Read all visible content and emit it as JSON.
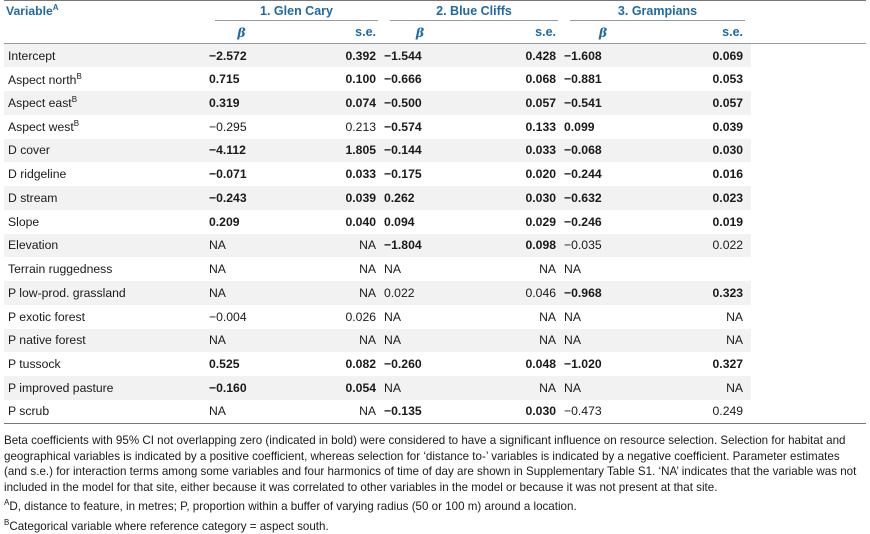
{
  "header": {
    "variable_label": "Variable",
    "variable_sup": "A",
    "groups": [
      "1. Glen Cary",
      "2. Blue Cliffs",
      "3. Grampians"
    ],
    "beta_label": "β",
    "se_label": "s.e."
  },
  "rows": [
    {
      "name": "Intercept",
      "sup": "",
      "cells": [
        {
          "v": "−2.572",
          "b": true
        },
        {
          "v": "0.392",
          "b": true
        },
        {
          "v": "−1.544",
          "b": true
        },
        {
          "v": "0.428",
          "b": true
        },
        {
          "v": "−1.608",
          "b": true
        },
        {
          "v": "0.069",
          "b": true
        }
      ]
    },
    {
      "name": "Aspect north",
      "sup": "B",
      "cells": [
        {
          "v": "0.715",
          "b": true
        },
        {
          "v": "0.100",
          "b": true
        },
        {
          "v": "−0.666",
          "b": true
        },
        {
          "v": "0.068",
          "b": true
        },
        {
          "v": "−0.881",
          "b": true
        },
        {
          "v": "0.053",
          "b": true
        }
      ]
    },
    {
      "name": "Aspect east",
      "sup": "B",
      "cells": [
        {
          "v": "0.319",
          "b": true
        },
        {
          "v": "0.074",
          "b": true
        },
        {
          "v": "−0.500",
          "b": true
        },
        {
          "v": "0.057",
          "b": true
        },
        {
          "v": "−0.541",
          "b": true
        },
        {
          "v": "0.057",
          "b": true
        }
      ]
    },
    {
      "name": "Aspect west",
      "sup": "B",
      "cells": [
        {
          "v": "−0.295",
          "b": false
        },
        {
          "v": "0.213",
          "b": false
        },
        {
          "v": "−0.574",
          "b": true
        },
        {
          "v": "0.133",
          "b": true
        },
        {
          "v": "0.099",
          "b": true
        },
        {
          "v": "0.039",
          "b": true
        }
      ]
    },
    {
      "name": "D cover",
      "sup": "",
      "cells": [
        {
          "v": "−4.112",
          "b": true
        },
        {
          "v": "1.805",
          "b": true
        },
        {
          "v": "−0.144",
          "b": true
        },
        {
          "v": "0.033",
          "b": true
        },
        {
          "v": "−0.068",
          "b": true
        },
        {
          "v": "0.030",
          "b": true
        }
      ]
    },
    {
      "name": "D ridgeline",
      "sup": "",
      "cells": [
        {
          "v": "−0.071",
          "b": true
        },
        {
          "v": "0.033",
          "b": true
        },
        {
          "v": "−0.175",
          "b": true
        },
        {
          "v": "0.020",
          "b": true
        },
        {
          "v": "−0.244",
          "b": true
        },
        {
          "v": "0.016",
          "b": true
        }
      ]
    },
    {
      "name": "D stream",
      "sup": "",
      "cells": [
        {
          "v": "−0.243",
          "b": true
        },
        {
          "v": "0.039",
          "b": true
        },
        {
          "v": "0.262",
          "b": true
        },
        {
          "v": "0.030",
          "b": true
        },
        {
          "v": "−0.632",
          "b": true
        },
        {
          "v": "0.023",
          "b": true
        }
      ]
    },
    {
      "name": "Slope",
      "sup": "",
      "cells": [
        {
          "v": "0.209",
          "b": true
        },
        {
          "v": "0.040",
          "b": true
        },
        {
          "v": "0.094",
          "b": true
        },
        {
          "v": "0.029",
          "b": true
        },
        {
          "v": "−0.246",
          "b": true
        },
        {
          "v": "0.019",
          "b": true
        }
      ]
    },
    {
      "name": "Elevation",
      "sup": "",
      "cells": [
        {
          "v": "NA",
          "b": false
        },
        {
          "v": "NA",
          "b": false
        },
        {
          "v": "−1.804",
          "b": true
        },
        {
          "v": "0.098",
          "b": true
        },
        {
          "v": "−0.035",
          "b": false
        },
        {
          "v": "0.022",
          "b": false
        }
      ]
    },
    {
      "name": "Terrain ruggedness",
      "sup": "",
      "cells": [
        {
          "v": "NA",
          "b": false
        },
        {
          "v": "NA",
          "b": false
        },
        {
          "v": "NA",
          "b": false
        },
        {
          "v": "NA",
          "b": false
        },
        {
          "v": "NA",
          "b": false
        },
        {
          "v": "",
          "b": false
        }
      ]
    },
    {
      "name": "P low-prod. grassland",
      "sup": "",
      "cells": [
        {
          "v": "NA",
          "b": false
        },
        {
          "v": "NA",
          "b": false
        },
        {
          "v": "0.022",
          "b": false
        },
        {
          "v": "0.046",
          "b": false
        },
        {
          "v": "−0.968",
          "b": true
        },
        {
          "v": "0.323",
          "b": true
        }
      ]
    },
    {
      "name": "P exotic forest",
      "sup": "",
      "cells": [
        {
          "v": "−0.004",
          "b": false
        },
        {
          "v": "0.026",
          "b": false
        },
        {
          "v": "NA",
          "b": false
        },
        {
          "v": "NA",
          "b": false
        },
        {
          "v": "NA",
          "b": false
        },
        {
          "v": "NA",
          "b": false
        }
      ]
    },
    {
      "name": "P native forest",
      "sup": "",
      "cells": [
        {
          "v": "NA",
          "b": false
        },
        {
          "v": "NA",
          "b": false
        },
        {
          "v": "NA",
          "b": false
        },
        {
          "v": "NA",
          "b": false
        },
        {
          "v": "NA",
          "b": false
        },
        {
          "v": "NA",
          "b": false
        }
      ]
    },
    {
      "name": "P tussock",
      "sup": "",
      "cells": [
        {
          "v": "0.525",
          "b": true
        },
        {
          "v": "0.082",
          "b": true
        },
        {
          "v": "−0.260",
          "b": true
        },
        {
          "v": "0.048",
          "b": true
        },
        {
          "v": "−1.020",
          "b": true
        },
        {
          "v": "0.327",
          "b": true
        }
      ]
    },
    {
      "name": "P improved pasture",
      "sup": "",
      "cells": [
        {
          "v": "−0.160",
          "b": true
        },
        {
          "v": "0.054",
          "b": true
        },
        {
          "v": "NA",
          "b": false
        },
        {
          "v": "NA",
          "b": false
        },
        {
          "v": "NA",
          "b": false
        },
        {
          "v": "NA",
          "b": false
        }
      ]
    },
    {
      "name": "P scrub",
      "sup": "",
      "cells": [
        {
          "v": "NA",
          "b": false
        },
        {
          "v": "NA",
          "b": false
        },
        {
          "v": "−0.135",
          "b": true
        },
        {
          "v": "0.030",
          "b": true
        },
        {
          "v": "−0.473",
          "b": false
        },
        {
          "v": "0.249",
          "b": false
        }
      ]
    }
  ],
  "notes": {
    "main": "Beta coefficients with 95% CI not overlapping zero (indicated in bold) were considered to have a significant influence on resource selection. Selection for habitat and geographical variables is indicated by a positive coefficient, whereas selection for ‘distance to-’ variables is indicated by a negative coefficient. Parameter estimates (and s.e.) for interaction terms among some variables and four harmonics of time of day are shown in Supplementary Table S1. ‘NA’ indicates that the variable was not included in the model for that site, either because it was correlated to other variables in the model or because it was not present at that site.",
    "a_mark": "A",
    "a_text": "D, distance to feature, in metres; P, proportion within a buffer of varying radius (50 or 100 m) around a location.",
    "b_mark": "B",
    "b_text": "Categorical variable where reference category = aspect south."
  }
}
